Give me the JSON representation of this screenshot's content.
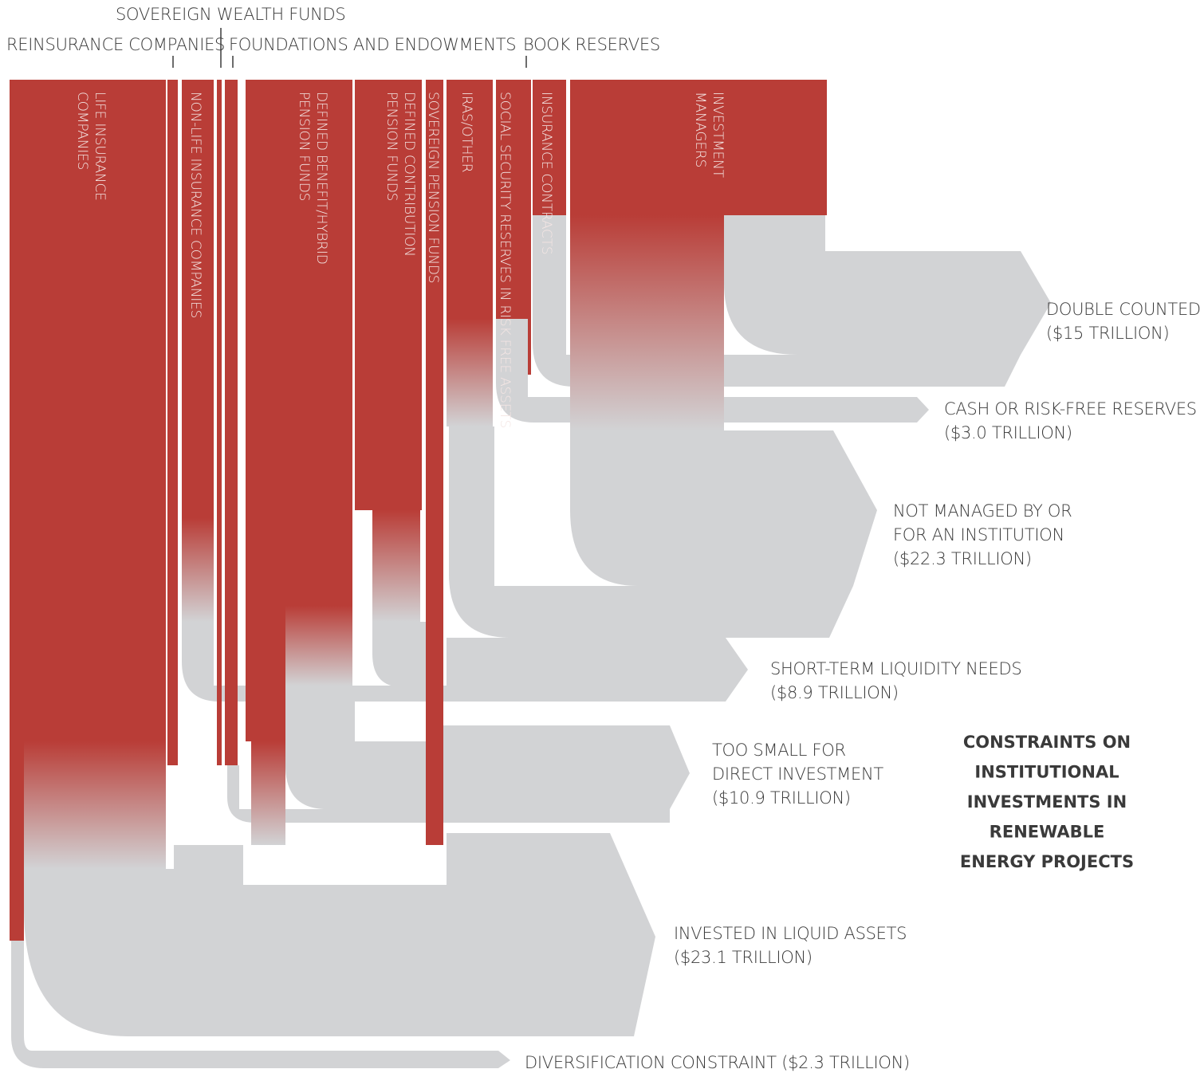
{
  "colors": {
    "institution_red": "#b93d37",
    "constraint_gray": "#d2d3d5",
    "text_dark": "#3a3a3a",
    "text_on_red": "#f4e6e4"
  },
  "top_labels": {
    "sovereign_wealth_funds": "SOVEREIGN WEALTH FUNDS",
    "reinsurance_companies": "REINSURANCE COMPANIES",
    "foundations_and_endowments": "FOUNDATIONS AND ENDOWMENTS",
    "book_reserves": "BOOK RESERVES"
  },
  "institutions": {
    "life_insurance": [
      "LIFE INSURANCE",
      "COMPANIES"
    ],
    "non_life_insurance": [
      "NON-LIFE INSURANCE COMPANIES"
    ],
    "defined_benefit": [
      "DEFINED BENEFIT/HYBRID",
      "PENSION FUNDS"
    ],
    "defined_contribution": [
      "DEFINED CONTRIBUTION",
      "PENSION FUNDS"
    ],
    "sovereign_pension": [
      "SOVEREIGN PENSION FUNDS"
    ],
    "iras_other": [
      "IRAS/OTHER"
    ],
    "social_security": [
      "SOCIAL SECURITY RESERVES IN RISK FREE ASSETS"
    ],
    "insurance_contracts": [
      "INSURANCE CONTRACTS"
    ],
    "investment_managers": [
      "INVESTMENT",
      "MANAGERS"
    ]
  },
  "constraints": {
    "double_counted": [
      "DOUBLE COUNTED",
      "($15 TRILLION)"
    ],
    "cash_reserves": [
      "CASH OR RISK-FREE RESERVES",
      "($3.0 TRILLION)"
    ],
    "not_managed": [
      "NOT MANAGED BY OR",
      "FOR AN INSTITUTION",
      "($22.3 TRILLION)"
    ],
    "short_term": [
      "SHORT-TERM LIQUIDITY NEEDS",
      "($8.9 TRILLION)"
    ],
    "too_small": [
      "TOO SMALL FOR",
      "DIRECT INVESTMENT",
      "($10.9 TRILLION)"
    ],
    "liquid_assets": [
      "INVESTED IN LIQUID ASSETS",
      "($23.1 TRILLION)"
    ],
    "diversification": [
      "DIVERSIFICATION CONSTRAINT ($2.3 TRILLION)"
    ]
  },
  "title_lines": [
    "CONSTRAINTS ON",
    "INSTITUTIONAL",
    "INVESTMENTS IN",
    "RENEWABLE",
    "ENERGY PROJECTS"
  ]
}
